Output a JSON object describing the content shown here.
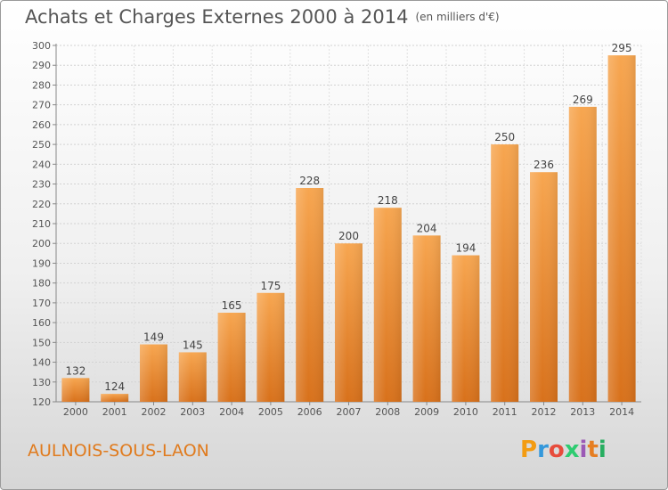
{
  "header": {
    "title": "Achats et Charges Externes 2000 à 2014",
    "unit": "(en milliers d'€)"
  },
  "footer": {
    "commune": "AULNOIS-SOUS-LAON",
    "logo_letters": [
      "P",
      "r",
      "o",
      "x",
      "i",
      "t",
      "i"
    ],
    "logo_colors": [
      "#f39c12",
      "#3498db",
      "#e74c3c",
      "#2ecc71",
      "#9b59b6",
      "#e67e22",
      "#27ae60"
    ]
  },
  "colors": {
    "bar_light": "#f5a04a",
    "bar_dark": "#d9721c",
    "text": "#555555",
    "accent": "#e07b1e"
  },
  "chart_data": {
    "type": "bar",
    "title": "Achats et Charges Externes 2000 à 2014",
    "subtitle": "(en milliers d'€)",
    "xlabel": "",
    "ylabel": "",
    "categories": [
      "2000",
      "2001",
      "2002",
      "2003",
      "2004",
      "2005",
      "2006",
      "2007",
      "2008",
      "2009",
      "2010",
      "2011",
      "2012",
      "2013",
      "2014"
    ],
    "values": [
      132,
      124,
      149,
      145,
      165,
      175,
      228,
      200,
      218,
      204,
      194,
      250,
      236,
      269,
      295
    ],
    "ylim": [
      120,
      300
    ],
    "yticks": [
      120,
      130,
      140,
      150,
      160,
      170,
      180,
      190,
      200,
      210,
      220,
      230,
      240,
      250,
      260,
      270,
      280,
      290,
      300
    ],
    "grid": true,
    "legend": "none"
  }
}
